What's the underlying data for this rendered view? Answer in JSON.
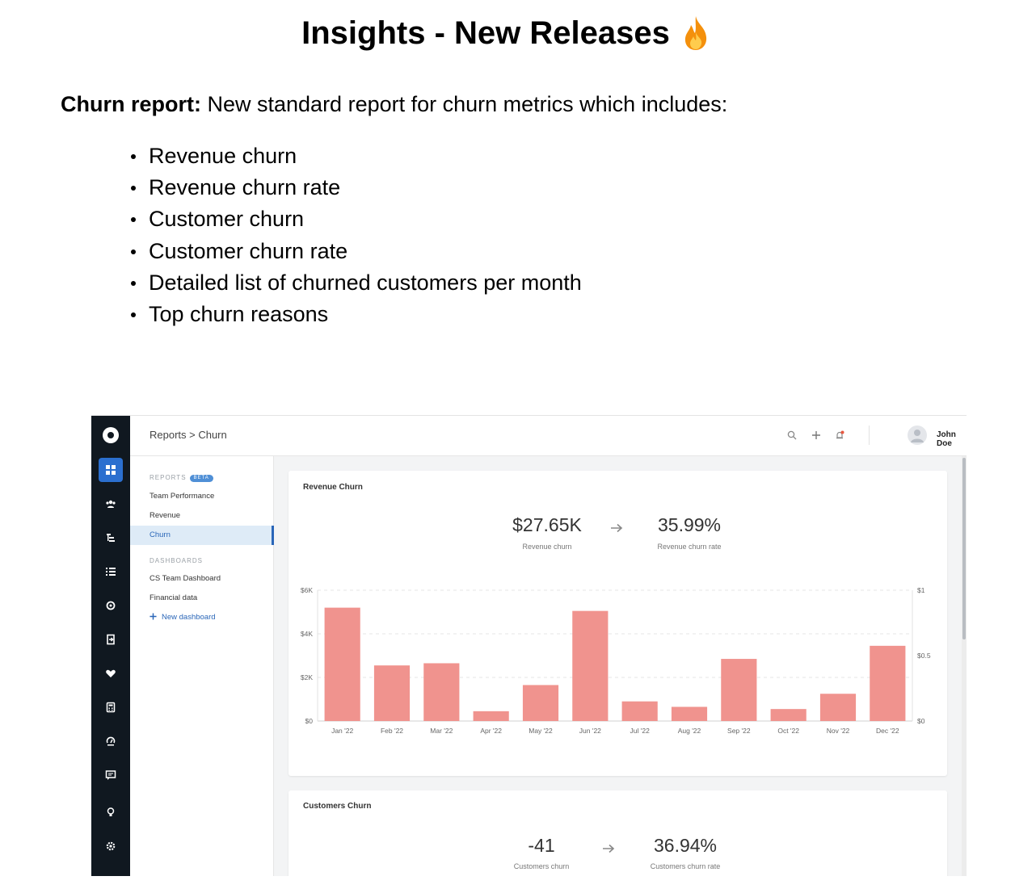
{
  "slide": {
    "title": "Insights - New Releases",
    "intro_bold": "Churn report:",
    "intro_text": " New standard report for churn metrics which includes:",
    "bullets": [
      "Revenue churn",
      "Revenue churn rate",
      "Customer churn",
      "Customer churn rate",
      "Detailed list of churned customers per month",
      "Top churn reasons"
    ]
  },
  "app": {
    "breadcrumb": "Reports > Churn",
    "user": {
      "name": "John Doe"
    },
    "topbar_icons": [
      "search-icon",
      "plus-icon",
      "bell-icon"
    ],
    "rail_icons": [
      "logo-icon",
      "dashboard-icon",
      "users-icon",
      "hierarchy-icon",
      "list-icon",
      "sync-icon",
      "login-icon",
      "heart-icon",
      "calculator-icon",
      "health-icon",
      "message-icon",
      "bulb-icon",
      "gear-icon"
    ],
    "subnav": {
      "reports_heading": "REPORTS",
      "beta": "BETA",
      "reports": [
        "Team Performance",
        "Revenue",
        "Churn"
      ],
      "active_report": "Churn",
      "dashboards_heading": "DASHBOARDS",
      "dashboards": [
        "CS Team Dashboard",
        "Financial data"
      ],
      "new_dashboard": "New dashboard"
    },
    "revenue_card": {
      "title": "Revenue Churn",
      "kpi1_value": "$27.65K",
      "kpi1_label": "Revenue churn",
      "kpi2_value": "35.99%",
      "kpi2_label": "Revenue churn rate"
    },
    "customers_card": {
      "title": "Customers Churn",
      "kpi1_value": "-41",
      "kpi1_label": "Customers churn",
      "kpi2_value": "36.94%",
      "kpi2_label": "Customers churn rate"
    }
  },
  "chart_data": {
    "type": "bar",
    "categories": [
      "Jan '22",
      "Feb '22",
      "Mar '22",
      "Apr '22",
      "May '22",
      "Jun '22",
      "Jul '22",
      "Aug '22",
      "Sep '22",
      "Oct '22",
      "Nov '22",
      "Dec '22"
    ],
    "values": [
      5200,
      2550,
      2650,
      450,
      1650,
      5050,
      900,
      650,
      2850,
      550,
      1250,
      3450
    ],
    "ylim": [
      0,
      6000
    ],
    "yticks": [
      "$0",
      "$2K",
      "$4K",
      "$6K"
    ],
    "y2ticks": [
      "$0",
      "$0.5",
      "$1"
    ],
    "bar_color": "#f0938e",
    "grid": true
  }
}
